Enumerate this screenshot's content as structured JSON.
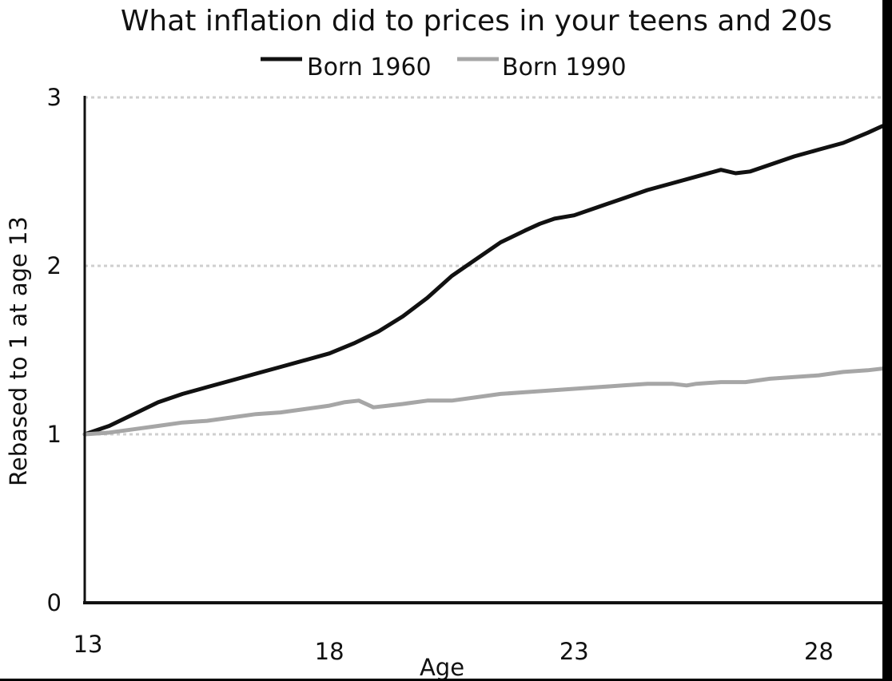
{
  "chart_data": {
    "type": "line",
    "title": "What inflation did to prices in your teens and 20s",
    "xlabel": "Age",
    "ylabel": "Rebased to 1 at age 13",
    "xlim": [
      13,
      29.3
    ],
    "ylim": [
      0,
      3
    ],
    "x_ticks": [
      "13",
      "18",
      "23",
      "28"
    ],
    "y_ticks": [
      "0",
      "1",
      "2",
      "3"
    ],
    "grid": "horizontal dotted",
    "legend_position": "top-center",
    "series": [
      {
        "name": "Born 1960",
        "color": "#111111",
        "x": [
          13,
          13.5,
          14,
          14.5,
          15,
          15.5,
          16,
          16.5,
          17,
          17.5,
          18,
          18.5,
          19,
          19.5,
          20,
          20.5,
          21,
          21.5,
          22,
          22.3,
          22.6,
          23,
          23.5,
          24,
          24.5,
          25,
          25.5,
          26,
          26.3,
          26.6,
          27,
          27.5,
          28,
          28.5,
          29,
          29.3
        ],
        "y": [
          1.0,
          1.05,
          1.12,
          1.19,
          1.24,
          1.28,
          1.32,
          1.36,
          1.4,
          1.44,
          1.48,
          1.54,
          1.61,
          1.7,
          1.81,
          1.94,
          2.04,
          2.14,
          2.21,
          2.25,
          2.28,
          2.3,
          2.35,
          2.4,
          2.45,
          2.49,
          2.53,
          2.57,
          2.55,
          2.56,
          2.6,
          2.65,
          2.69,
          2.73,
          2.79,
          2.83
        ]
      },
      {
        "name": "Born 1990",
        "color": "#a6a6a6",
        "x": [
          13,
          13.5,
          14,
          14.5,
          15,
          15.5,
          16,
          16.5,
          17,
          17.5,
          18,
          18.3,
          18.6,
          18.9,
          19.2,
          19.5,
          20,
          20.5,
          21,
          21.5,
          22,
          22.5,
          23,
          23.5,
          24,
          24.5,
          25,
          25.3,
          25.5,
          26,
          26.5,
          27,
          27.5,
          28,
          28.5,
          29,
          29.3
        ],
        "y": [
          1.0,
          1.01,
          1.03,
          1.05,
          1.07,
          1.08,
          1.1,
          1.12,
          1.13,
          1.15,
          1.17,
          1.19,
          1.2,
          1.16,
          1.17,
          1.18,
          1.2,
          1.2,
          1.22,
          1.24,
          1.25,
          1.26,
          1.27,
          1.28,
          1.29,
          1.3,
          1.3,
          1.29,
          1.3,
          1.31,
          1.31,
          1.33,
          1.34,
          1.35,
          1.37,
          1.38,
          1.39
        ]
      }
    ]
  }
}
